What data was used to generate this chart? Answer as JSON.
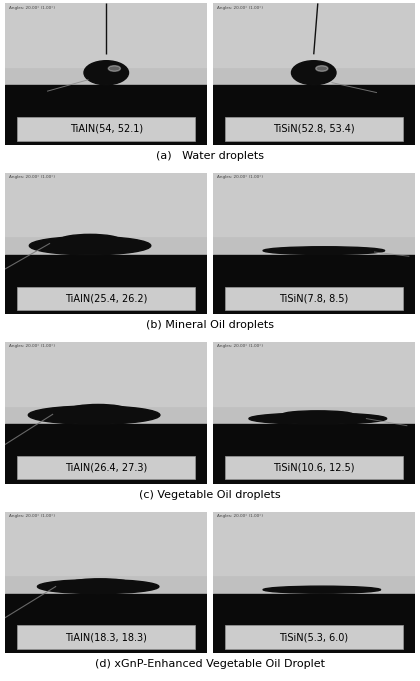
{
  "figure_size": [
    4.2,
    6.81
  ],
  "dpi": 100,
  "background_color": "#ffffff",
  "rows": [
    {
      "label": "(a)   Water droplets",
      "panels": [
        {
          "label_text": "TiAIN(54, 52.1)",
          "droplet_type": "water"
        },
        {
          "label_text": "TiSiN(52.8, 53.4)",
          "droplet_type": "water_right"
        }
      ]
    },
    {
      "label": "(b) Mineral Oil droplets",
      "panels": [
        {
          "label_text": "TiAIN(25.4, 26.2)",
          "droplet_type": "oil_flat_left"
        },
        {
          "label_text": "TiSiN(7.8, 8.5)",
          "droplet_type": "oil_very_flat"
        }
      ]
    },
    {
      "label": "(c) Vegetable Oil droplets",
      "panels": [
        {
          "label_text": "TiAIN(26.4, 27.3)",
          "droplet_type": "veg_oil_left"
        },
        {
          "label_text": "TiSiN(10.6, 12.5)",
          "droplet_type": "veg_oil_flat"
        }
      ]
    },
    {
      "label": "(d) xGnP-Enhanced Vegetable Oil Droplet",
      "panels": [
        {
          "label_text": "TiAIN(18.3, 18.3)",
          "droplet_type": "xgnp_left"
        },
        {
          "label_text": "TiSiN(5.3, 6.0)",
          "droplet_type": "xgnp_flat"
        }
      ]
    }
  ],
  "header_text": "Angles: 20.00° (1.00°)",
  "panel_bg_top": "#bebebe",
  "panel_bg_bottom": "#888888",
  "black_band_color": "#0a0a0a",
  "label_box_facecolor": "#cccccc",
  "label_text_color": "#000000",
  "droplet_color": "#0d0d0d",
  "needle_color": "#111111",
  "angle_line_color": "#888888"
}
